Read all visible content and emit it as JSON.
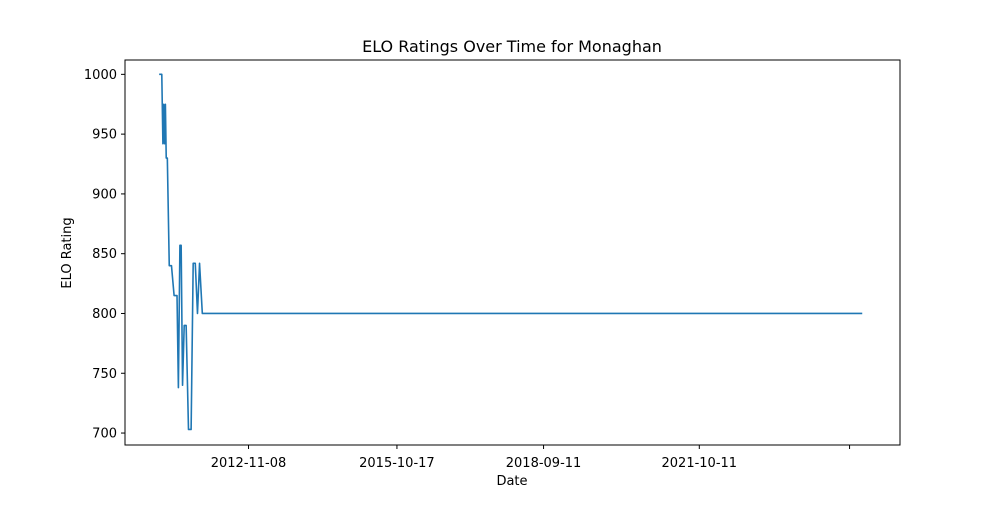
{
  "chart_data": {
    "type": "line",
    "title": "ELO Ratings Over Time for Monaghan",
    "xlabel": "Date",
    "ylabel": "ELO Rating",
    "x_axis_type": "date",
    "xlim": [
      "2010-05-30",
      "2025-10-01"
    ],
    "ylim": [
      690,
      1012
    ],
    "x_ticks": [
      "2012-11-08",
      "2015-10-17",
      "2018-09-11",
      "2021-10-11"
    ],
    "y_ticks": [
      700,
      750,
      800,
      850,
      900,
      950,
      1000
    ],
    "grid": false,
    "legend": "none",
    "series": [
      {
        "color": "#1f77b4",
        "x": [
          "2011-02-01",
          "2011-02-20",
          "2011-02-28",
          "2011-03-06",
          "2011-03-12",
          "2011-03-18",
          "2011-03-24",
          "2011-04-01",
          "2011-04-15",
          "2011-05-01",
          "2011-05-20",
          "2011-06-10",
          "2011-06-20",
          "2011-07-01",
          "2011-07-10",
          "2011-07-20",
          "2011-08-01",
          "2011-08-15",
          "2011-09-01",
          "2011-09-20",
          "2011-10-05",
          "2011-10-20",
          "2011-11-05",
          "2011-11-20",
          "2011-12-10",
          "2012-01-01",
          "2025-01-01"
        ],
        "y": [
          1000,
          1000,
          942,
          975,
          942,
          975,
          930,
          930,
          840,
          840,
          815,
          815,
          738,
          857,
          857,
          740,
          790,
          790,
          703,
          703,
          842,
          842,
          800,
          842,
          800,
          800,
          800
        ]
      }
    ]
  }
}
